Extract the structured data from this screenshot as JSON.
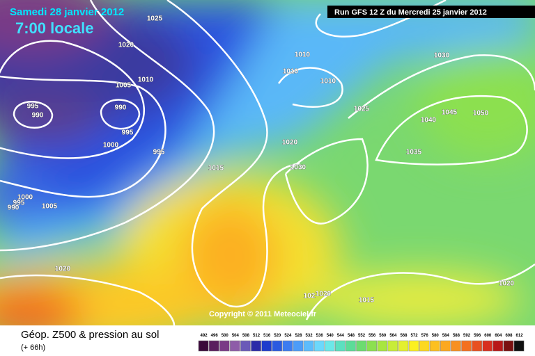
{
  "header": {
    "date": "Samedi 28 janvier 2012",
    "time": "7:00 locale",
    "run": "Run GFS 12 Z du Mercredi 25 janvier 2012"
  },
  "footer": {
    "title": "Géop. Z500 & pression au sol",
    "lead": "(+ 66h)",
    "copyright": "Copyright © 2011 Meteociel.fr"
  },
  "scale": {
    "labels": [
      492,
      496,
      500,
      504,
      508,
      512,
      516,
      520,
      524,
      528,
      532,
      536,
      540,
      544,
      548,
      552,
      556,
      560,
      564,
      568,
      572,
      576,
      580,
      584,
      588,
      592,
      596,
      600,
      604,
      608,
      612
    ],
    "colors": [
      "#3a0a3a",
      "#5a1e5e",
      "#7a3a86",
      "#8e5ca8",
      "#6a5ab8",
      "#2a2aa8",
      "#1e3ccc",
      "#2a5ae0",
      "#3c7cf0",
      "#4c9cf8",
      "#5cbcfc",
      "#6cd8fc",
      "#6ce8e8",
      "#5ce0c0",
      "#5cdc98",
      "#6cdc70",
      "#8ce050",
      "#a8e640",
      "#c8ec38",
      "#e4f030",
      "#fcf020",
      "#fcd820",
      "#fcc020",
      "#fca820",
      "#f89020",
      "#f47020",
      "#e85020",
      "#d83020",
      "#b81818",
      "#7a1010",
      "#101010"
    ]
  },
  "isobar_labels": [
    "1025",
    "1020",
    "1010",
    "1005",
    "995",
    "990",
    "990",
    "995",
    "1000",
    "995",
    "1015",
    "1000",
    "995",
    "990",
    "1005",
    "1020",
    "1010",
    "1010",
    "1010",
    "1030",
    "1025",
    "1020",
    "1030",
    "1035",
    "1040",
    "1045",
    "1050",
    "1020",
    "102",
    "1020",
    "1015"
  ]
}
